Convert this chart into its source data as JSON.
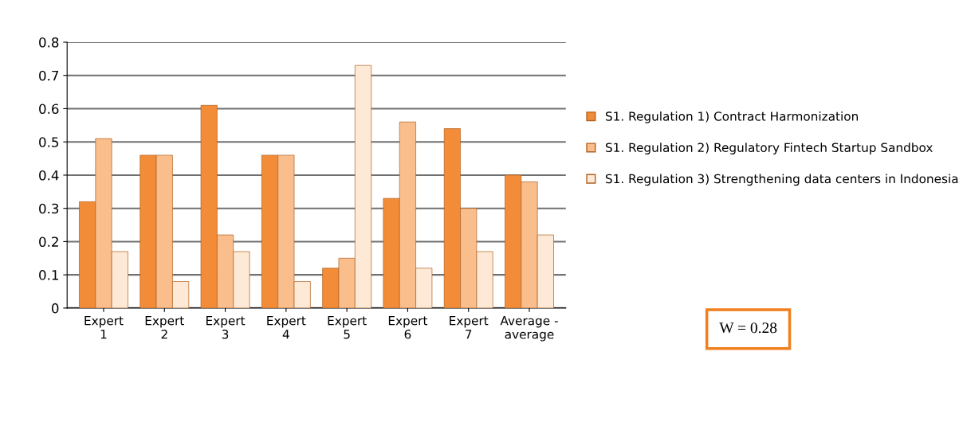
{
  "chart_data": {
    "type": "bar",
    "categories": [
      "Expert\n1",
      "Expert\n2",
      "Expert\n3",
      "Expert\n4",
      "Expert\n5",
      "Expert\n6",
      "Expert\n7",
      "Average -\naverage"
    ],
    "series": [
      {
        "name": "S1. Regulation 1) Contract Harmonization",
        "color": "#f28c38",
        "values": [
          0.32,
          0.46,
          0.61,
          0.46,
          0.12,
          0.33,
          0.54,
          0.4
        ]
      },
      {
        "name": "S1. Regulation 2) Regulatory Fintech Startup Sandbox",
        "color": "#f9be8c",
        "values": [
          0.51,
          0.46,
          0.22,
          0.46,
          0.15,
          0.56,
          0.3,
          0.38
        ]
      },
      {
        "name": "S1. Regulation 3) Strengthening data centers in Indonesia",
        "color": "#fde9d6",
        "values": [
          0.17,
          0.08,
          0.17,
          0.08,
          0.73,
          0.12,
          0.17,
          0.22
        ]
      }
    ],
    "ylim": [
      0,
      0.8
    ],
    "yticks": [
      0,
      0.1,
      0.2,
      0.3,
      0.4,
      0.5,
      0.6,
      0.7,
      0.8
    ],
    "grid": "y",
    "legend": "right",
    "annotations": [
      "W = 0.28"
    ]
  }
}
